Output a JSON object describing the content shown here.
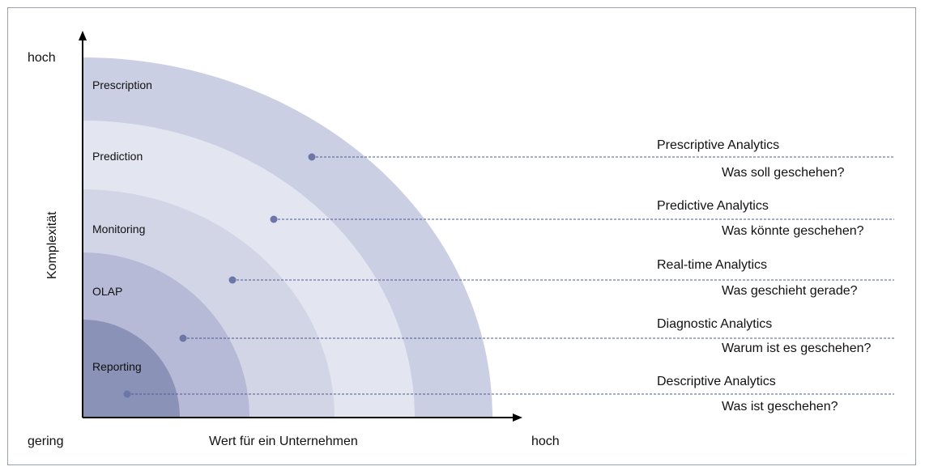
{
  "axes": {
    "y_title": "Komplexität",
    "y_high": "hoch",
    "x_low": "gering",
    "x_title": "Wert für ein Unternehmen",
    "x_high": "hoch"
  },
  "rings": [
    {
      "label": "Reporting",
      "color": "#8a92b8"
    },
    {
      "label": "OLAP",
      "color": "#b6bad6"
    },
    {
      "label": "Monitoring",
      "color": "#d2d5e6"
    },
    {
      "label": "Prediction",
      "color": "#e3e5f0"
    },
    {
      "label": "Prescription",
      "color": "#cbcfe3"
    }
  ],
  "levels": [
    {
      "title": "Prescriptive Analytics",
      "question": "Was soll geschehen?"
    },
    {
      "title": "Predictive Analytics",
      "question": "Was könnte geschehen?"
    },
    {
      "title": "Real-time Analytics",
      "question": "Was geschieht gerade?"
    },
    {
      "title": "Diagnostic Analytics",
      "question": "Warum ist es geschehen?"
    },
    {
      "title": "Descriptive Analytics",
      "question": "Was ist geschehen?"
    }
  ],
  "colors": {
    "line": "#4d5a8f",
    "dot": "#6c77a8",
    "axis": "#000000"
  }
}
